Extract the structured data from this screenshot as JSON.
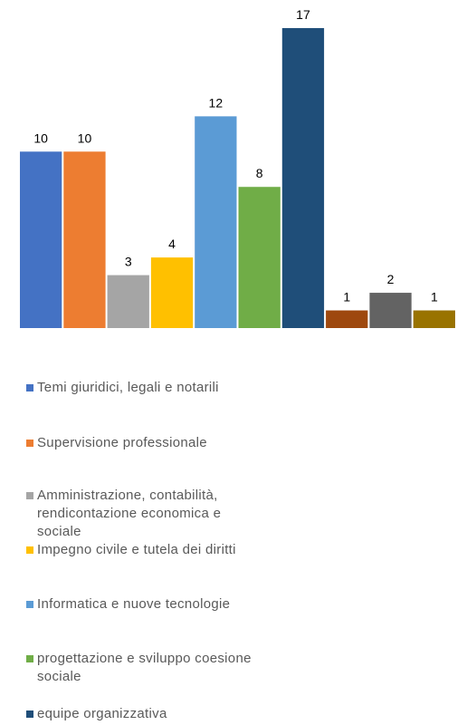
{
  "chart_data": {
    "type": "bar",
    "categories": [
      "Temi giuridici, legali e notarili",
      "Supervisione professionale",
      "Amministrazione, contabilità, rendicontazione economica e sociale",
      "Impegno civile e tutela dei diritti",
      "Informatica e nuove tecnologie",
      "progettazione e sviluppo coesione sociale",
      "equipe organizzativa",
      null,
      null,
      null
    ],
    "values": [
      10,
      10,
      3,
      4,
      12,
      8,
      17,
      1,
      2,
      1
    ],
    "colors": [
      "#4472c4",
      "#ed7d31",
      "#a5a5a5",
      "#ffc000",
      "#5b9bd5",
      "#70ad47",
      "#1f4e79",
      "#9e480e",
      "#636363",
      "#997300"
    ]
  }
}
